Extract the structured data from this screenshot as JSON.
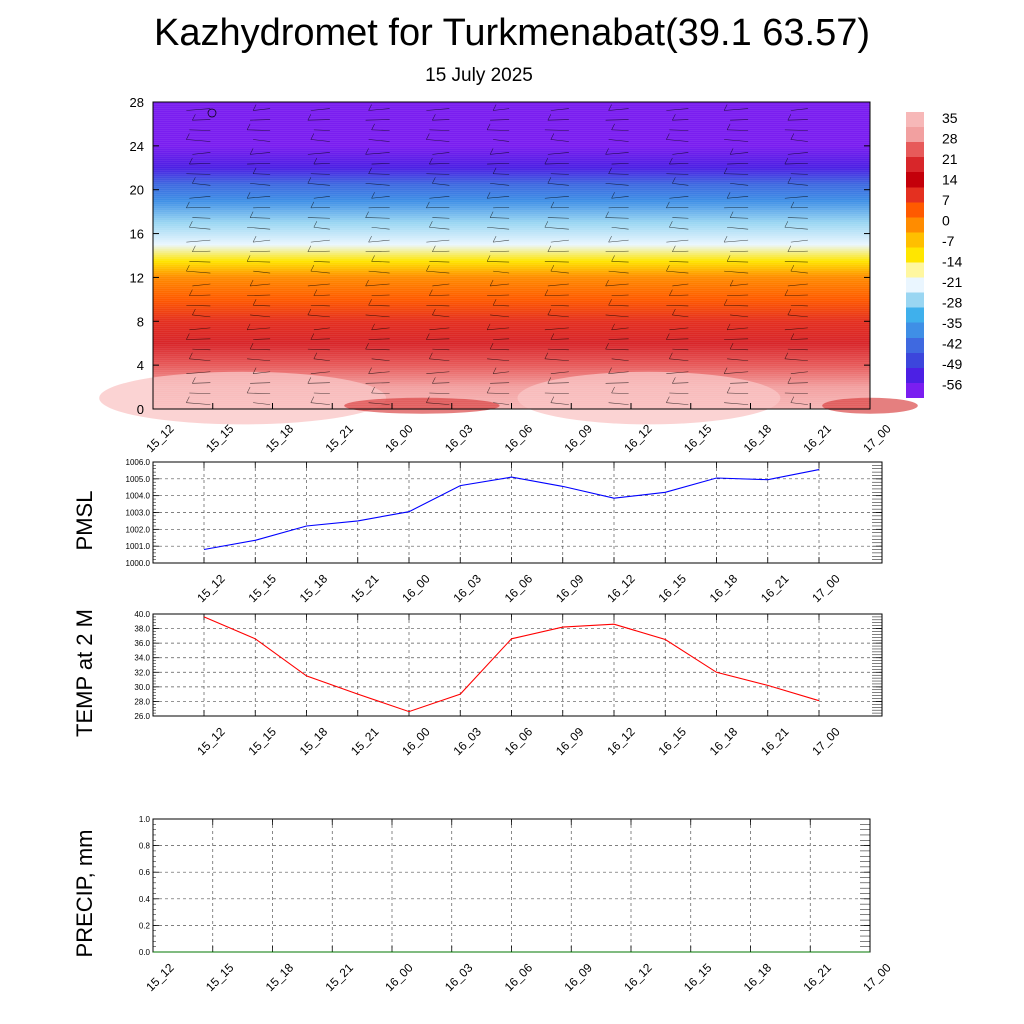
{
  "title": "Kazhydromet for Turkmenabat(39.1 63.57)",
  "subtitle": "15 July 2025",
  "colors": {
    "pmsl_line": "#0000ff",
    "temp_line": "#ff0000",
    "precip_line": "#007700",
    "grid": "#000000"
  },
  "chart_data": [
    {
      "type": "heatmap",
      "name": "vertical-section",
      "x": [
        "15_12",
        "15_15",
        "15_18",
        "15_21",
        "16_00",
        "16_03",
        "16_06",
        "16_09",
        "16_12",
        "16_15",
        "16_18",
        "16_21",
        "17_00"
      ],
      "ylim": [
        0,
        28
      ],
      "yticks": [
        0,
        4,
        8,
        12,
        16,
        20,
        24,
        28
      ],
      "colorbar_labels": [
        "35",
        "28",
        "21",
        "14",
        "7",
        "0",
        "-7",
        "-14",
        "-21",
        "-28",
        "-35",
        "-42",
        "-49",
        "-56"
      ],
      "colorbar_values": [
        35,
        28,
        21,
        14,
        7,
        0,
        -7,
        -14,
        -21,
        -28,
        -35,
        -42,
        -49,
        -56
      ],
      "colorbar_colors": [
        "#f7b8b8",
        "#f2a0a0",
        "#e75a5a",
        "#d8262a",
        "#c4000a",
        "#e43020",
        "#ff5a00",
        "#ff8c00",
        "#ffbf00",
        "#ffe600",
        "#fff7a0",
        "#eaf6ff",
        "#9ad6f2",
        "#3fb0ec",
        "#3f8fe6",
        "#3f69e0",
        "#3c46dc",
        "#4c20e4",
        "#7a1ef0"
      ],
      "level_bands": [
        {
          "level": 0,
          "temp": 36
        },
        {
          "level": 2,
          "temp": 33
        },
        {
          "level": 4,
          "temp": 25
        },
        {
          "level": 6,
          "temp": 20
        },
        {
          "level": 8,
          "temp": 13
        },
        {
          "level": 10,
          "temp": 5
        },
        {
          "level": 12,
          "temp": -2
        },
        {
          "level": 13.5,
          "temp": -12
        },
        {
          "level": 15,
          "temp": -22
        },
        {
          "level": 17,
          "temp": -30
        },
        {
          "level": 19,
          "temp": -38
        },
        {
          "level": 20.5,
          "temp": -46
        },
        {
          "level": 22,
          "temp": -54
        },
        {
          "level": 24,
          "temp": -58
        },
        {
          "level": 28,
          "temp": -60
        }
      ]
    },
    {
      "type": "line",
      "name": "pmsl",
      "ylabel": "PMSL",
      "x": [
        "15_12",
        "15_15",
        "15_18",
        "15_21",
        "16_00",
        "16_03",
        "16_06",
        "16_09",
        "16_12",
        "16_15",
        "16_18",
        "16_21",
        "17_00"
      ],
      "values": [
        1000.8,
        1001.35,
        1002.2,
        1002.5,
        1003.05,
        1004.6,
        1005.1,
        1004.55,
        1003.85,
        1004.2,
        1005.05,
        1004.95,
        1005.55
      ],
      "ylim": [
        1000.0,
        1006.0
      ],
      "yticks": [
        "1000.0",
        "1001.0",
        "1002.0",
        "1003.0",
        "1004.0",
        "1005.0",
        "1006.0"
      ]
    },
    {
      "type": "line",
      "name": "temp-2m",
      "ylabel": "TEMP at 2 M",
      "x": [
        "15_12",
        "15_15",
        "15_18",
        "15_21",
        "16_00",
        "16_03",
        "16_06",
        "16_09",
        "16_12",
        "16_15",
        "16_18",
        "16_21",
        "17_00"
      ],
      "values": [
        39.6,
        36.6,
        31.5,
        29.0,
        26.6,
        29.0,
        36.6,
        38.2,
        38.6,
        36.5,
        32.0,
        30.2,
        28.1
      ],
      "ylim": [
        26.0,
        40.0
      ],
      "yticks": [
        "26.0",
        "28.0",
        "30.0",
        "32.0",
        "34.0",
        "36.0",
        "38.0",
        "40.0"
      ]
    },
    {
      "type": "line",
      "name": "precip",
      "ylabel": "PRECIP, mm",
      "x": [
        "15_12",
        "15_15",
        "15_18",
        "15_21",
        "16_00",
        "16_03",
        "16_06",
        "16_09",
        "16_12",
        "16_15",
        "16_18",
        "16_21",
        "17_00"
      ],
      "values": [
        0,
        0,
        0,
        0,
        0,
        0,
        0,
        0,
        0,
        0,
        0,
        0,
        0
      ],
      "ylim": [
        0.0,
        1.0
      ],
      "yticks": [
        "0.0",
        "0.2",
        "0.4",
        "0.6",
        "0.8",
        "1.0"
      ]
    }
  ]
}
